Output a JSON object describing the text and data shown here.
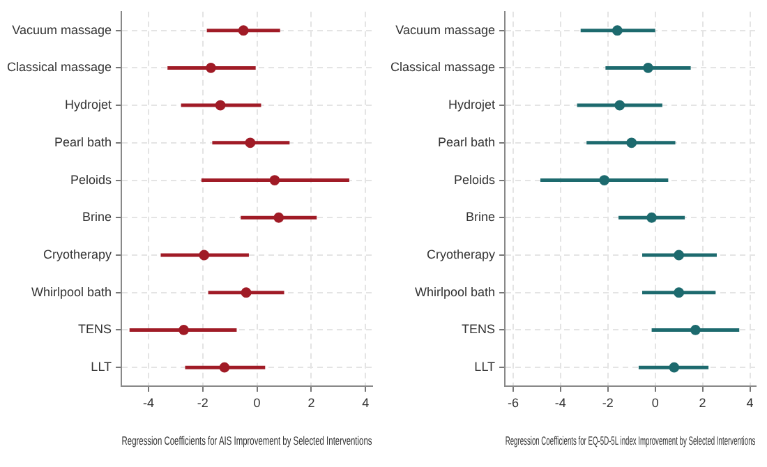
{
  "chart_data": [
    {
      "type": "scatter",
      "orientation": "horizontal",
      "xlabel": "Regression Coefficients for AIS Improvement by Selected Interventions",
      "categories": [
        "Vacuum massage",
        "Classical massage",
        "Hydrojet",
        "Pearl bath",
        "Peloids",
        "Brine",
        "Cryotherapy",
        "Whirlpool bath",
        "TENS",
        "LLT"
      ],
      "xlim": [
        -5,
        4.25
      ],
      "xticks": [
        -4,
        -2,
        0,
        2,
        4
      ],
      "grid": true,
      "marker": "circle",
      "series": [
        {
          "color": "#a01b26",
          "values": [
            -0.5,
            -1.7,
            -1.35,
            -0.25,
            0.65,
            0.8,
            -1.95,
            -0.4,
            -2.7,
            -1.2
          ],
          "errors": [
            [
              -1.85,
              0.85
            ],
            [
              -3.3,
              -0.05
            ],
            [
              -2.8,
              0.15
            ],
            [
              -1.65,
              1.2
            ],
            [
              -2.05,
              3.4
            ],
            [
              -0.6,
              2.2
            ],
            [
              -3.55,
              -0.3
            ],
            [
              -1.8,
              1.0
            ],
            [
              -4.7,
              -0.75
            ],
            [
              -2.65,
              0.3
            ]
          ]
        }
      ]
    },
    {
      "type": "scatter",
      "orientation": "horizontal",
      "xlabel": "Regression Coefficients for EQ-5D-5L index Improvement by Selected Interventions",
      "categories": [
        "Vacuum massage",
        "Classical massage",
        "Hydrojet",
        "Pearl bath",
        "Peloids",
        "Brine",
        "Cryotherapy",
        "Whirlpool bath",
        "TENS",
        "LLT"
      ],
      "xlim": [
        -6.35,
        4.25
      ],
      "xticks": [
        -6,
        -4,
        -2,
        0,
        2,
        4
      ],
      "grid": true,
      "marker": "circle",
      "series": [
        {
          "color": "#1d6a6e",
          "values": [
            -1.6,
            -0.3,
            -1.5,
            -1.0,
            -2.15,
            -0.15,
            1.0,
            1.0,
            1.7,
            0.8
          ],
          "errors": [
            [
              -3.15,
              0.0
            ],
            [
              -2.1,
              1.5
            ],
            [
              -3.3,
              0.3
            ],
            [
              -2.9,
              0.85
            ],
            [
              -4.85,
              0.55
            ],
            [
              -1.55,
              1.25
            ],
            [
              -0.55,
              2.6
            ],
            [
              -0.55,
              2.55
            ],
            [
              -0.15,
              3.55
            ],
            [
              -0.7,
              2.25
            ]
          ]
        }
      ]
    }
  ]
}
